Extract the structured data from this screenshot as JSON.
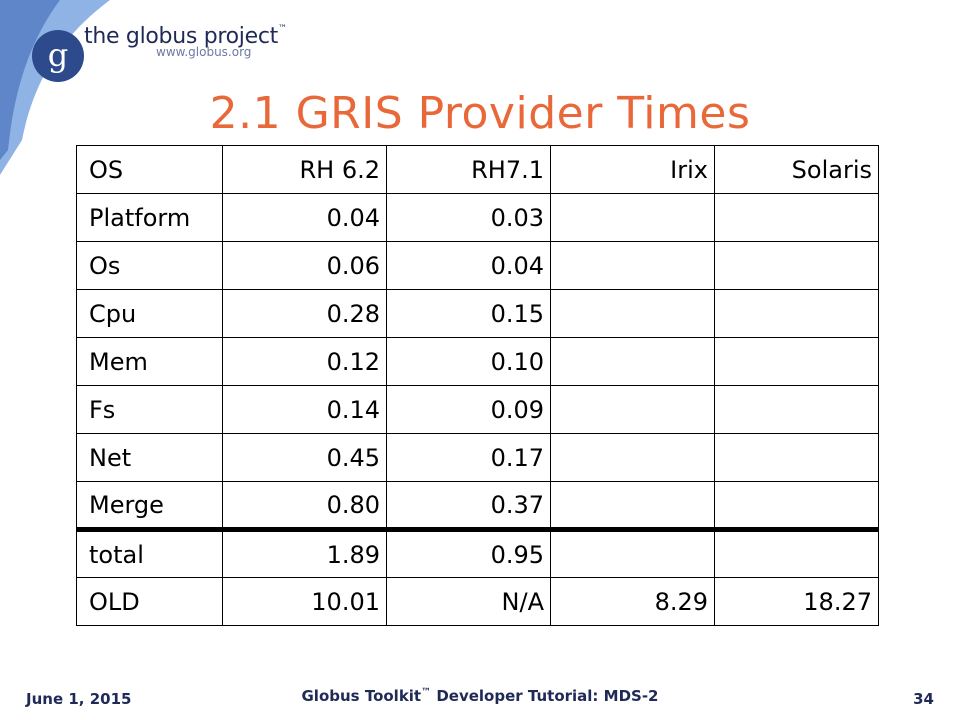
{
  "logo": {
    "letter": "g",
    "name": "the globus project",
    "tm": "™",
    "url": "www.globus.org"
  },
  "slide": {
    "title": "2.1 GRIS Provider Times"
  },
  "table": {
    "header": [
      "OS",
      "RH 6.2",
      "RH7.1",
      "Irix",
      "Solaris"
    ],
    "rows": [
      [
        "Platform",
        "0.04",
        "0.03",
        "",
        ""
      ],
      [
        "Os",
        "0.06",
        "0.04",
        "",
        ""
      ],
      [
        "Cpu",
        "0.28",
        "0.15",
        "",
        ""
      ],
      [
        "Mem",
        "0.12",
        "0.10",
        "",
        ""
      ],
      [
        "Fs",
        "0.14",
        "0.09",
        "",
        ""
      ],
      [
        "Net",
        "0.45",
        "0.17",
        "",
        ""
      ],
      [
        "Merge",
        "0.80",
        "0.37",
        "",
        ""
      ],
      [
        "total",
        "1.89",
        "0.95",
        "",
        ""
      ],
      [
        "OLD",
        "10.01",
        "N/A",
        "8.29",
        "18.27"
      ]
    ]
  },
  "footer": {
    "date": "June 1, 2015",
    "center_pre": "Globus Toolkit",
    "center_tm": "™",
    "center_post": " Developer Tutorial: MDS-2",
    "page": "34"
  },
  "colors": {
    "title": "#e8683a",
    "navy": "#1f2a56",
    "swoosh": "#7fa6dc"
  }
}
